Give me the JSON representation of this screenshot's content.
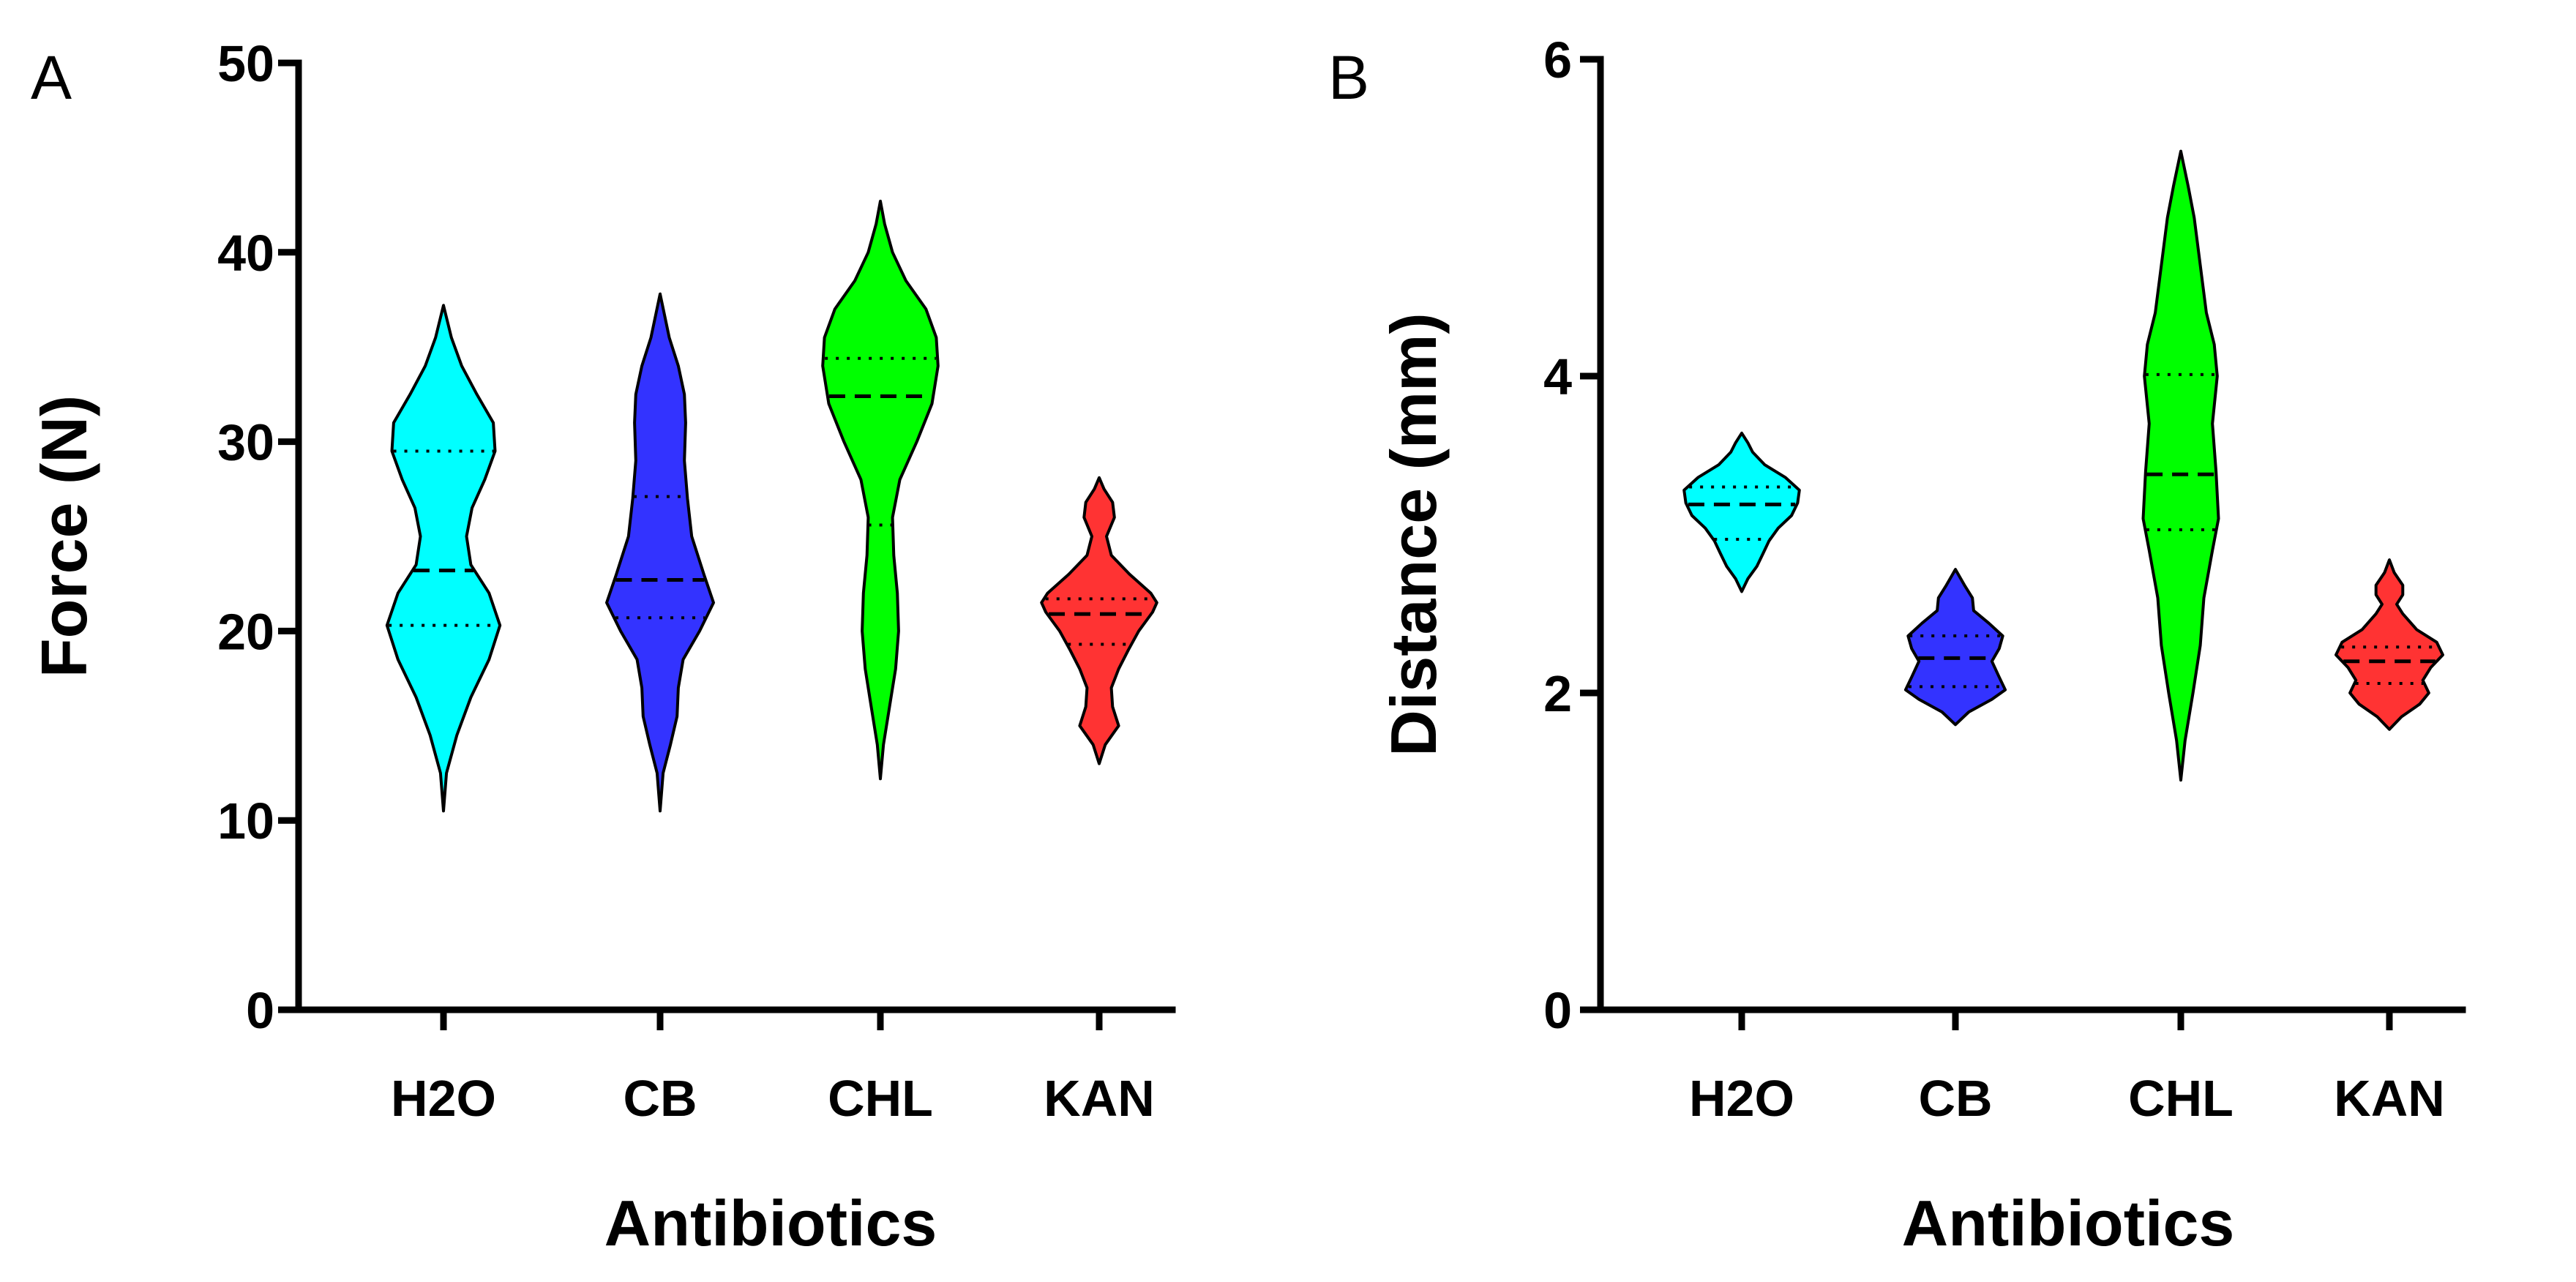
{
  "chart_data": [
    {
      "type": "violin",
      "panel_label": "A",
      "title": "",
      "xlabel": "Antibiotics",
      "ylabel": "Force (N)",
      "ylim": [
        0,
        50
      ],
      "yticks": [
        0,
        10,
        20,
        30,
        40,
        50
      ],
      "categories": [
        "H2O",
        "CB",
        "CHL",
        "KAN"
      ],
      "grid": false,
      "series": [
        {
          "name": "H2O",
          "color": "#00FFFF",
          "min": 10.5,
          "max": 37.2,
          "q1": 20.3,
          "median": 23.2,
          "q3": 29.5,
          "density": [
            [
              10.5,
              0
            ],
            [
              12.5,
              0.05
            ],
            [
              14.5,
              0.22
            ],
            [
              16.5,
              0.45
            ],
            [
              18.5,
              0.75
            ],
            [
              20.3,
              0.93
            ],
            [
              22,
              0.75
            ],
            [
              23.5,
              0.45
            ],
            [
              25,
              0.38
            ],
            [
              26.5,
              0.47
            ],
            [
              28,
              0.68
            ],
            [
              29.5,
              0.85
            ],
            [
              31,
              0.82
            ],
            [
              32.5,
              0.55
            ],
            [
              34,
              0.3
            ],
            [
              35.5,
              0.13
            ],
            [
              37.2,
              0
            ]
          ]
        },
        {
          "name": "CB",
          "color": "#3333FF",
          "min": 10.5,
          "max": 37.8,
          "q1": 20.7,
          "median": 22.7,
          "q3": 27.1,
          "density": [
            [
              10.5,
              0
            ],
            [
              12.5,
              0.05
            ],
            [
              14,
              0.17
            ],
            [
              15.5,
              0.28
            ],
            [
              17,
              0.3
            ],
            [
              18.5,
              0.38
            ],
            [
              20,
              0.65
            ],
            [
              21.5,
              0.88
            ],
            [
              23,
              0.72
            ],
            [
              25,
              0.52
            ],
            [
              27,
              0.45
            ],
            [
              29,
              0.4
            ],
            [
              31,
              0.42
            ],
            [
              32.5,
              0.4
            ],
            [
              34,
              0.3
            ],
            [
              35.5,
              0.15
            ],
            [
              37.8,
              0
            ]
          ]
        },
        {
          "name": "CHL",
          "color": "#00FF00",
          "min": 12.2,
          "max": 42.7,
          "q1": 25.6,
          "median": 32.4,
          "q3": 34.4,
          "density": [
            [
              12.2,
              0
            ],
            [
              14,
              0.05
            ],
            [
              16,
              0.15
            ],
            [
              18,
              0.25
            ],
            [
              20,
              0.3
            ],
            [
              22,
              0.28
            ],
            [
              24,
              0.22
            ],
            [
              26,
              0.2
            ],
            [
              28,
              0.32
            ],
            [
              30,
              0.6
            ],
            [
              32,
              0.85
            ],
            [
              34,
              0.95
            ],
            [
              35.5,
              0.92
            ],
            [
              37,
              0.75
            ],
            [
              38.5,
              0.42
            ],
            [
              40,
              0.2
            ],
            [
              41.5,
              0.07
            ],
            [
              42.7,
              0
            ]
          ]
        },
        {
          "name": "KAN",
          "color": "#FF3333",
          "min": 13.0,
          "max": 28.1,
          "q1": 19.3,
          "median": 20.9,
          "q3": 21.7,
          "density": [
            [
              13,
              0
            ],
            [
              14,
              0.1
            ],
            [
              15,
              0.32
            ],
            [
              16,
              0.22
            ],
            [
              17,
              0.2
            ],
            [
              18,
              0.32
            ],
            [
              19,
              0.48
            ],
            [
              20,
              0.65
            ],
            [
              21,
              0.88
            ],
            [
              21.5,
              0.95
            ],
            [
              22,
              0.85
            ],
            [
              23,
              0.5
            ],
            [
              24,
              0.2
            ],
            [
              25,
              0.12
            ],
            [
              26,
              0.25
            ],
            [
              26.8,
              0.22
            ],
            [
              27.5,
              0.08
            ],
            [
              28.1,
              0
            ]
          ]
        }
      ]
    },
    {
      "type": "violin",
      "panel_label": "B",
      "title": "",
      "xlabel": "Antibiotics",
      "ylabel": "Distance (mm)",
      "ylim": [
        0,
        6
      ],
      "yticks": [
        0,
        2,
        4,
        6
      ],
      "categories": [
        "H2O",
        "CB",
        "CHL",
        "KAN"
      ],
      "grid": false,
      "series": [
        {
          "name": "H2O",
          "color": "#00FFFF",
          "min": 2.64,
          "max": 3.64,
          "q1": 2.97,
          "median": 3.19,
          "q3": 3.3,
          "density": [
            [
              2.64,
              0
            ],
            [
              2.72,
              0.1
            ],
            [
              2.8,
              0.25
            ],
            [
              2.88,
              0.35
            ],
            [
              2.96,
              0.45
            ],
            [
              3.04,
              0.6
            ],
            [
              3.12,
              0.82
            ],
            [
              3.2,
              0.92
            ],
            [
              3.28,
              0.95
            ],
            [
              3.36,
              0.72
            ],
            [
              3.44,
              0.38
            ],
            [
              3.52,
              0.18
            ],
            [
              3.58,
              0.1
            ],
            [
              3.64,
              0
            ]
          ]
        },
        {
          "name": "CB",
          "color": "#3333FF",
          "min": 1.8,
          "max": 2.78,
          "q1": 2.04,
          "median": 2.22,
          "q3": 2.36,
          "density": [
            [
              1.8,
              0
            ],
            [
              1.88,
              0.22
            ],
            [
              1.96,
              0.6
            ],
            [
              2.02,
              0.82
            ],
            [
              2.1,
              0.72
            ],
            [
              2.2,
              0.6
            ],
            [
              2.28,
              0.72
            ],
            [
              2.36,
              0.78
            ],
            [
              2.44,
              0.55
            ],
            [
              2.52,
              0.3
            ],
            [
              2.6,
              0.28
            ],
            [
              2.68,
              0.15
            ],
            [
              2.78,
              0
            ]
          ]
        },
        {
          "name": "CHL",
          "color": "#00FF00",
          "min": 1.45,
          "max": 5.42,
          "q1": 3.03,
          "median": 3.38,
          "q3": 4.01,
          "density": [
            [
              1.45,
              0
            ],
            [
              1.7,
              0.07
            ],
            [
              2,
              0.2
            ],
            [
              2.3,
              0.32
            ],
            [
              2.6,
              0.38
            ],
            [
              2.9,
              0.52
            ],
            [
              3.1,
              0.62
            ],
            [
              3.4,
              0.58
            ],
            [
              3.7,
              0.52
            ],
            [
              4,
              0.6
            ],
            [
              4.2,
              0.55
            ],
            [
              4.4,
              0.42
            ],
            [
              4.7,
              0.32
            ],
            [
              5,
              0.22
            ],
            [
              5.2,
              0.12
            ],
            [
              5.42,
              0
            ]
          ]
        },
        {
          "name": "KAN",
          "color": "#FF3333",
          "min": 1.77,
          "max": 2.84,
          "q1": 2.06,
          "median": 2.2,
          "q3": 2.29,
          "density": [
            [
              1.77,
              0
            ],
            [
              1.85,
              0.2
            ],
            [
              1.93,
              0.5
            ],
            [
              2,
              0.65
            ],
            [
              2.08,
              0.55
            ],
            [
              2.16,
              0.68
            ],
            [
              2.24,
              0.88
            ],
            [
              2.32,
              0.78
            ],
            [
              2.4,
              0.45
            ],
            [
              2.5,
              0.22
            ],
            [
              2.56,
              0.12
            ],
            [
              2.62,
              0.22
            ],
            [
              2.68,
              0.22
            ],
            [
              2.76,
              0.08
            ],
            [
              2.84,
              0
            ]
          ]
        }
      ]
    }
  ]
}
